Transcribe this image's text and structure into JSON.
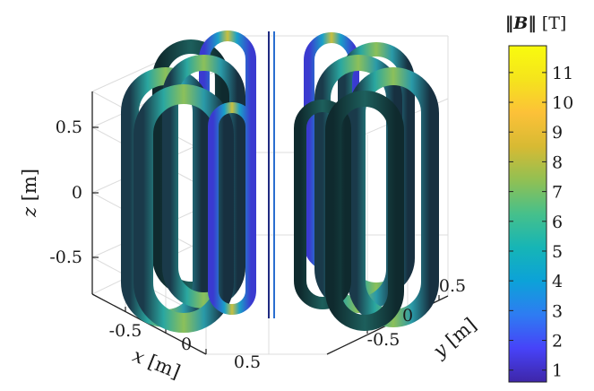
{
  "chart_data": {
    "type": "3d-surface",
    "colorbar": {
      "title_symbol": "‖B‖",
      "title_unit": "[T]",
      "ticks": [
        "1",
        "2",
        "3",
        "4",
        "5",
        "6",
        "7",
        "8",
        "9",
        "10",
        "11"
      ],
      "range": [
        0.6,
        11.9
      ],
      "colormap": "parula",
      "colors": [
        "#3e26a8",
        "#4743f8",
        "#2e7cf2",
        "#0ca2d8",
        "#16b5b6",
        "#46c08b",
        "#91c053",
        "#d7ba33",
        "#fcc138",
        "#f5e41c",
        "#f9fb0e"
      ]
    },
    "axes": {
      "x": {
        "label_var": "x",
        "label_unit": "[m]",
        "ticks": [
          "-0.5",
          "0",
          "0.5"
        ]
      },
      "y": {
        "label_var": "y",
        "label_unit": "[m]",
        "ticks": [
          "-0.5",
          "0",
          "0.5"
        ]
      },
      "z": {
        "label_var": "z",
        "label_unit": "[m]",
        "ticks": [
          "0.5",
          "0",
          "-0.5"
        ]
      }
    },
    "grid": true
  }
}
